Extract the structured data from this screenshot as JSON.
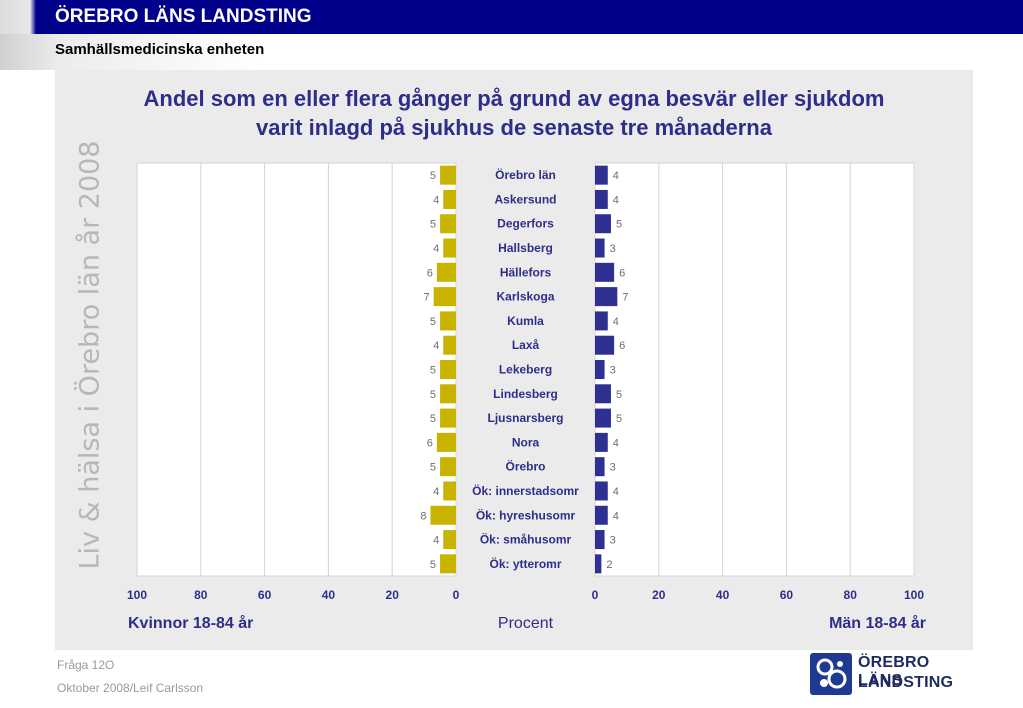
{
  "header": {
    "org": "ÖREBRO LÄNS LANDSTING",
    "unit": "Samhällsmedicinska enheten"
  },
  "side_text": "Liv & hälsa i Örebro län år 2008",
  "footer": {
    "question": "Fråga 12O",
    "author": "Oktober 2008/Leif Carlsson"
  },
  "logo": {
    "line1": "ÖREBRO LÄNS",
    "line2": "LANDSTING"
  },
  "colors": {
    "women": "#c8b400",
    "men": "#2e3192",
    "title": "#2e2e8a",
    "topbar": "#00008b"
  },
  "chart_data": {
    "type": "bar",
    "title": "Andel som en eller flera gånger på grund av egna besvär eller sjukdom varit inlagd på sjukhus de senaste tre månaderna",
    "title_lines": [
      "Andel som en eller flera gånger på grund av egna besvär eller sjukdom",
      "varit inlagd på sjukhus de senaste tre månaderna"
    ],
    "xlabel": "Procent",
    "left_label": "Kvinnor 18-84 år",
    "right_label": "Män 18-84 år",
    "xlim": [
      0,
      100
    ],
    "ticks_left": [
      "100",
      "80",
      "60",
      "40",
      "20",
      "0"
    ],
    "ticks_right": [
      "0",
      "20",
      "40",
      "60",
      "80",
      "100"
    ],
    "grid": true,
    "categories": [
      "Örebro län",
      "Askersund",
      "Degerfors",
      "Hallsberg",
      "Hällefors",
      "Karlskoga",
      "Kumla",
      "Laxå",
      "Lekeberg",
      "Lindesberg",
      "Ljusnarsberg",
      "Nora",
      "Örebro",
      "Ök: innerstadsomr",
      "Ök: hyreshusomr",
      "Ök: småhusomr",
      "Ök: ytteromr"
    ],
    "series": [
      {
        "name": "Kvinnor 18-84 år",
        "values": [
          5,
          4,
          5,
          4,
          6,
          7,
          5,
          4,
          5,
          5,
          5,
          6,
          5,
          4,
          8,
          4,
          5
        ]
      },
      {
        "name": "Män 18-84 år",
        "values": [
          4,
          4,
          5,
          3,
          6,
          7,
          4,
          6,
          3,
          5,
          5,
          4,
          3,
          4,
          4,
          3,
          2
        ]
      }
    ]
  }
}
